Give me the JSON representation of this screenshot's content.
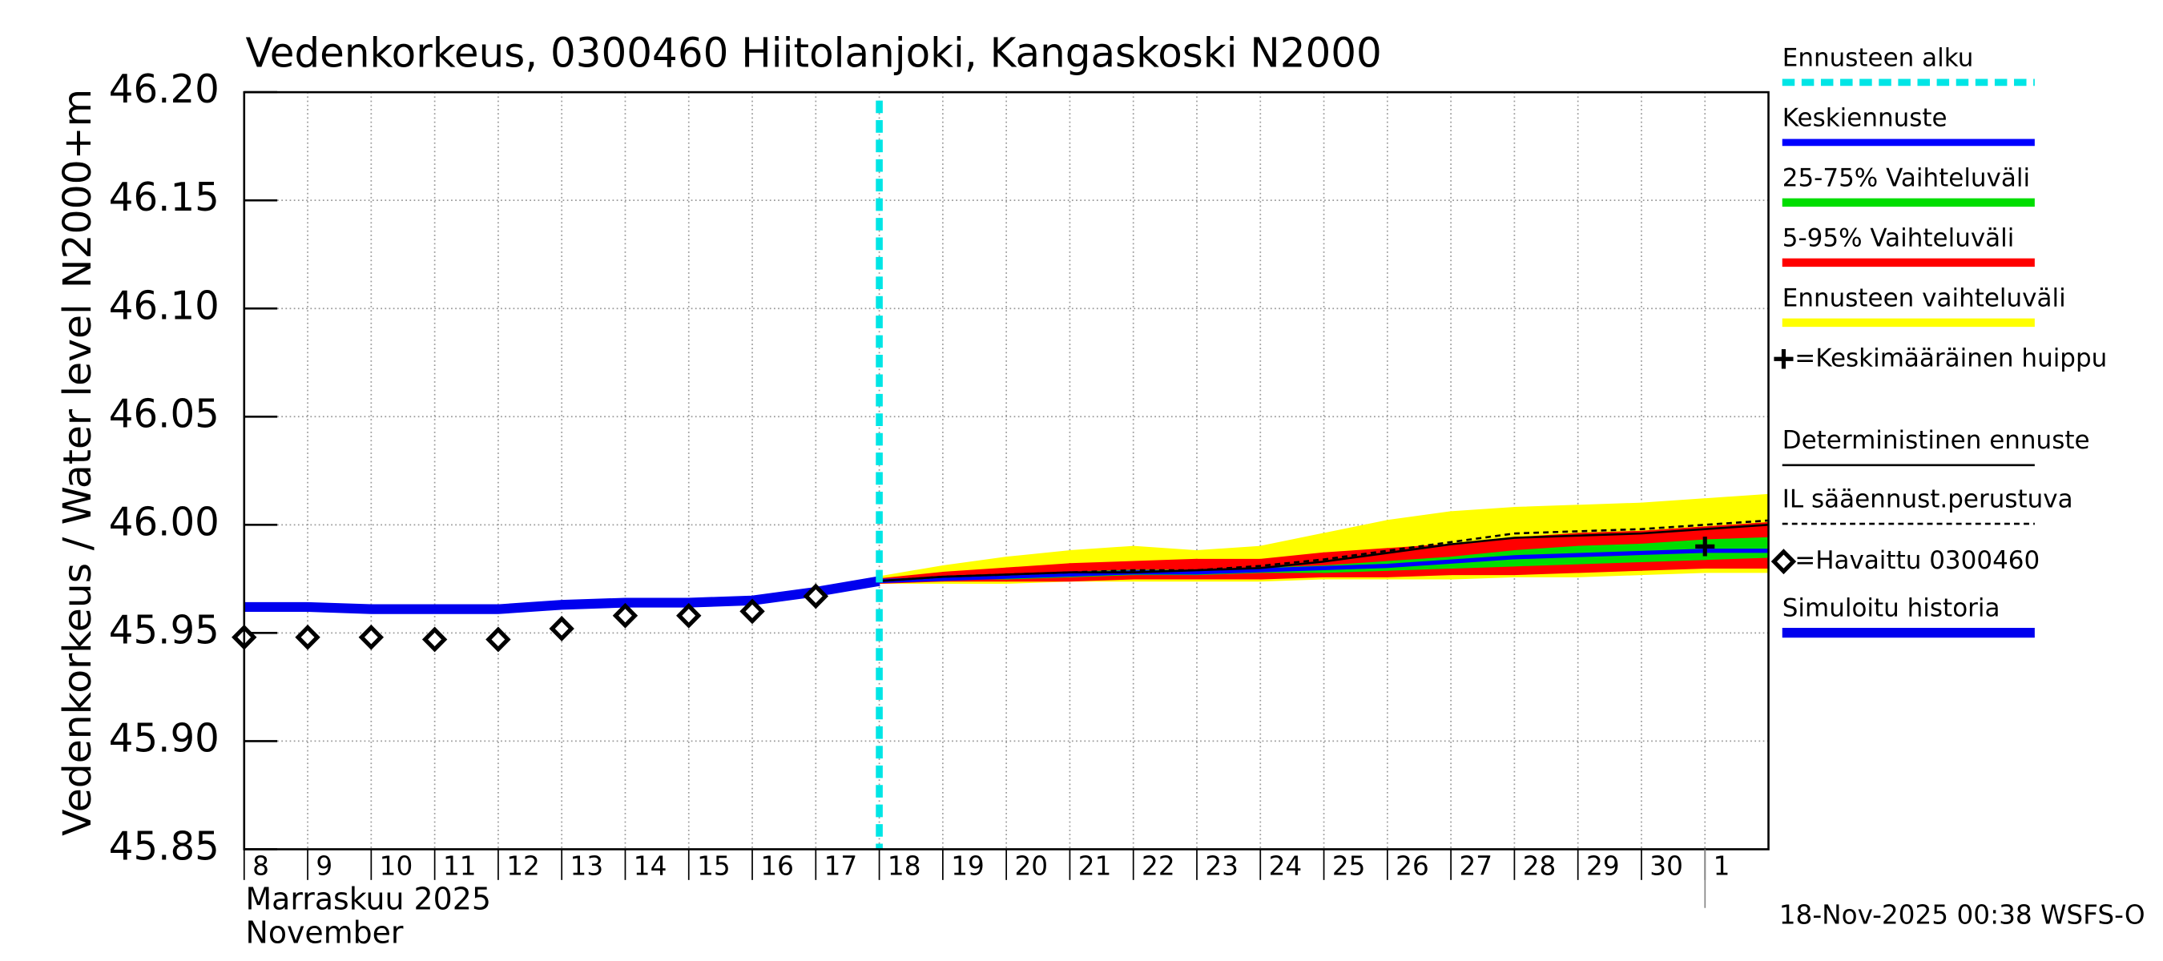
{
  "chart_data": {
    "type": "line",
    "title": "Vedenkorkeus, 0300460 Hiitolanjoki, Kangaskoski N2000",
    "ylabel": "Vedenkorkeus / Water level",
    "ylabel_unit": "N2000+m",
    "xlabel": "Marraskuu 2025",
    "xlabel2": "November",
    "footer": "18-Nov-2025 00:38 WSFS-O",
    "grid": true,
    "legend": "right",
    "xlim": [
      "2025-11-08",
      "2025-12-02"
    ],
    "ylim": [
      45.85,
      46.2
    ],
    "yticks": [
      45.85,
      {
        "value": 45.9,
        "label": "45.90"
      },
      45.95,
      {
        "value": 46.0,
        "label": "46.00"
      },
      46.05,
      {
        "value": 46.1,
        "label": "46.10"
      },
      46.15,
      {
        "value": 46.2,
        "label": "46.20"
      }
    ],
    "xticks": [
      {
        "value": "2025-11-08",
        "label": "8"
      },
      {
        "value": "2025-11-09",
        "label": "9"
      },
      {
        "value": "2025-11-10",
        "label": "10"
      },
      {
        "value": "2025-11-11",
        "label": "11"
      },
      {
        "value": "2025-11-12",
        "label": "12"
      },
      {
        "value": "2025-11-13",
        "label": "13"
      },
      {
        "value": "2025-11-14",
        "label": "14"
      },
      {
        "value": "2025-11-15",
        "label": "15"
      },
      {
        "value": "2025-11-16",
        "label": "16"
      },
      {
        "value": "2025-11-17",
        "label": "17"
      },
      {
        "value": "2025-11-18",
        "label": "18"
      },
      {
        "value": "2025-11-19",
        "label": "19"
      },
      {
        "value": "2025-11-20",
        "label": "20"
      },
      {
        "value": "2025-11-21",
        "label": "21"
      },
      {
        "value": "2025-11-22",
        "label": "22"
      },
      {
        "value": "2025-11-23",
        "label": "23"
      },
      {
        "value": "2025-11-24",
        "label": "24"
      },
      {
        "value": "2025-11-25",
        "label": "25"
      },
      {
        "value": "2025-11-26",
        "label": "26"
      },
      {
        "value": "2025-11-27",
        "label": "27"
      },
      {
        "value": "2025-11-28",
        "label": "28"
      },
      {
        "value": "2025-11-29",
        "label": "29"
      },
      {
        "value": "2025-11-30",
        "label": "30"
      },
      {
        "value": "2025-12-01",
        "label": "1"
      }
    ],
    "series": [
      {
        "name": "Ennusteen alku",
        "color": "#00e5e5",
        "style": "vline",
        "x": [
          "2025-11-18"
        ]
      },
      {
        "name": "Keskiennuste",
        "color": "#0000ff",
        "style": "line",
        "x": [
          "2025-11-18",
          "2025-11-19",
          "2025-11-20",
          "2025-11-21",
          "2025-11-22",
          "2025-11-23",
          "2025-11-24",
          "2025-11-25",
          "2025-11-26",
          "2025-11-27",
          "2025-11-28",
          "2025-11-29",
          "2025-11-30",
          "2025-12-01",
          "2025-12-02"
        ],
        "values": [
          45.974,
          45.975,
          45.976,
          45.977,
          45.978,
          45.978,
          45.979,
          45.98,
          45.981,
          45.983,
          45.985,
          45.986,
          45.987,
          45.988,
          45.988
        ]
      },
      {
        "name": "25-75% Vaihteluväli",
        "color": "#00dd00",
        "style": "band",
        "x": [
          "2025-11-18",
          "2025-11-19",
          "2025-11-20",
          "2025-11-21",
          "2025-11-22",
          "2025-11-23",
          "2025-11-24",
          "2025-11-25",
          "2025-11-26",
          "2025-11-27",
          "2025-11-28",
          "2025-11-29",
          "2025-11-30",
          "2025-12-01",
          "2025-12-02"
        ],
        "low": [
          45.974,
          45.975,
          45.975,
          45.976,
          45.977,
          45.977,
          45.978,
          45.978,
          45.979,
          45.98,
          45.981,
          45.982,
          45.983,
          45.984,
          45.985
        ],
        "high": [
          45.974,
          45.976,
          45.977,
          45.978,
          45.979,
          45.979,
          45.98,
          45.981,
          45.983,
          45.985,
          45.988,
          45.99,
          45.991,
          45.993,
          45.994
        ]
      },
      {
        "name": "5-95% Vaihteluväli",
        "color": "#ff0000",
        "style": "band",
        "x": [
          "2025-11-18",
          "2025-11-19",
          "2025-11-20",
          "2025-11-21",
          "2025-11-22",
          "2025-11-23",
          "2025-11-24",
          "2025-11-25",
          "2025-11-26",
          "2025-11-27",
          "2025-11-28",
          "2025-11-29",
          "2025-11-30",
          "2025-12-01",
          "2025-12-02"
        ],
        "low": [
          45.973,
          45.974,
          45.974,
          45.974,
          45.975,
          45.975,
          45.975,
          45.976,
          45.976,
          45.977,
          45.977,
          45.978,
          45.979,
          45.98,
          45.98
        ],
        "high": [
          45.975,
          45.978,
          45.98,
          45.982,
          45.983,
          45.984,
          45.984,
          45.987,
          45.989,
          45.991,
          45.994,
          45.996,
          45.997,
          45.999,
          46.001
        ]
      },
      {
        "name": "Ennusteen vaihteluväli",
        "color": "#ffff00",
        "style": "band",
        "x": [
          "2025-11-18",
          "2025-11-19",
          "2025-11-20",
          "2025-11-21",
          "2025-11-22",
          "2025-11-23",
          "2025-11-24",
          "2025-11-25",
          "2025-11-26",
          "2025-11-27",
          "2025-11-28",
          "2025-11-29",
          "2025-11-30",
          "2025-12-01",
          "2025-12-02"
        ],
        "low": [
          45.973,
          45.973,
          45.973,
          45.974,
          45.974,
          45.974,
          45.974,
          45.975,
          45.975,
          45.975,
          45.976,
          45.976,
          45.977,
          45.978,
          45.978
        ],
        "high": [
          45.976,
          45.981,
          45.985,
          45.988,
          45.99,
          45.988,
          45.99,
          45.996,
          46.002,
          46.006,
          46.008,
          46.009,
          46.01,
          46.012,
          46.014
        ]
      },
      {
        "name": "=Keskimääräinen huippu",
        "color": "#000000",
        "style": "plus",
        "x": [
          "2025-12-01"
        ],
        "values": [
          45.99
        ]
      },
      {
        "name": "Deterministinen ennuste",
        "color": "#000000",
        "style": "thin",
        "x": [
          "2025-11-18",
          "2025-11-19",
          "2025-11-20",
          "2025-11-21",
          "2025-11-22",
          "2025-11-23",
          "2025-11-24",
          "2025-11-25",
          "2025-11-26",
          "2025-11-27",
          "2025-11-28",
          "2025-11-29",
          "2025-11-30",
          "2025-12-01",
          "2025-12-02"
        ],
        "values": [
          45.974,
          45.976,
          45.977,
          45.978,
          45.978,
          45.979,
          45.98,
          45.983,
          45.987,
          45.991,
          45.994,
          45.995,
          45.996,
          45.998,
          46.0
        ]
      },
      {
        "name": "IL sääennust.perustuva",
        "color": "#000000",
        "style": "dashed",
        "x": [
          "2025-11-18",
          "2025-11-19",
          "2025-11-20",
          "2025-11-21",
          "2025-11-22",
          "2025-11-23",
          "2025-11-24",
          "2025-11-25",
          "2025-11-26",
          "2025-11-27",
          "2025-11-28",
          "2025-11-29",
          "2025-11-30",
          "2025-12-01",
          "2025-12-02"
        ],
        "values": [
          45.974,
          45.976,
          45.977,
          45.978,
          45.979,
          45.979,
          45.981,
          45.984,
          45.988,
          45.992,
          45.996,
          45.997,
          45.998,
          46.0,
          46.002
        ]
      },
      {
        "name": "=Havaittu 0300460",
        "color": "#000000",
        "style": "diamond",
        "x": [
          "2025-11-08",
          "2025-11-09",
          "2025-11-10",
          "2025-11-11",
          "2025-11-12",
          "2025-11-13",
          "2025-11-14",
          "2025-11-15",
          "2025-11-16",
          "2025-11-17"
        ],
        "values": [
          45.948,
          45.948,
          45.948,
          45.947,
          45.947,
          45.952,
          45.958,
          45.958,
          45.96,
          45.967
        ]
      },
      {
        "name": "Simuloitu historia",
        "color": "#0000ee",
        "style": "thick",
        "x": [
          "2025-11-08",
          "2025-11-09",
          "2025-11-10",
          "2025-11-11",
          "2025-11-12",
          "2025-11-13",
          "2025-11-14",
          "2025-11-15",
          "2025-11-16",
          "2025-11-17",
          "2025-11-18"
        ],
        "values": [
          45.962,
          45.962,
          45.961,
          45.961,
          45.961,
          45.963,
          45.964,
          45.964,
          45.965,
          45.969,
          45.974
        ]
      }
    ]
  }
}
